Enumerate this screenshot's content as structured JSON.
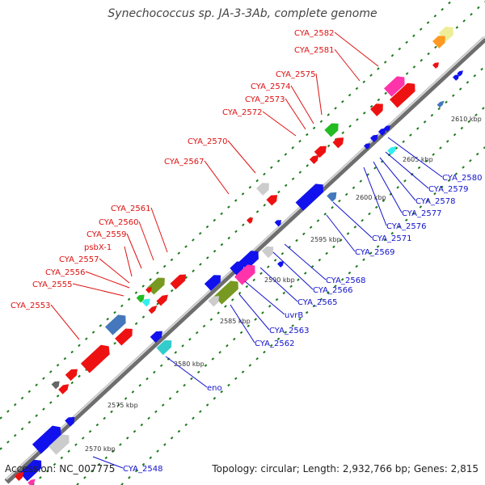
{
  "title": "Synechococcus sp. JA-3-3Ab, complete genome",
  "footer": {
    "accession": "Accession: NC_007775",
    "stats": "Topology: circular; Length: 2,932,766 bp; Genes: 2,815"
  },
  "colors": {
    "backbone": "#7a7a7a",
    "tick": "#1b7a1b",
    "label_top": "#dd1111",
    "label_bottom": "#1111cc",
    "kbp_text": "#333333"
  },
  "kbp_labels": [
    "2570 kbp",
    "2575 kbp",
    "2580 kbp",
    "2585 kbp",
    "2590 kbp",
    "2595 kbp",
    "2600 kbp",
    "2605 kbp",
    "2610 kbp"
  ],
  "labels_top": [
    "CYA_2582",
    "CYA_2581",
    "CYA_2575",
    "CYA_2574",
    "CYA_2573",
    "CYA_2572",
    "CYA_2570",
    "CYA_2567",
    "CYA_2561",
    "CYA_2560",
    "CYA_2559",
    "psbX-1",
    "CYA_2557",
    "CYA_2556",
    "CYA_2555",
    "CYA_2553"
  ],
  "labels_bottom": [
    "CYA_2580",
    "CYA_2579",
    "CYA_2578",
    "CYA_2577",
    "CYA_2576",
    "CYA_2571",
    "CYA_2569",
    "CYA_2568",
    "CYA_2566",
    "CYA_2565",
    "uvrB",
    "CYA_2563",
    "CYA_2562",
    "eno",
    "CYA_2548"
  ]
}
